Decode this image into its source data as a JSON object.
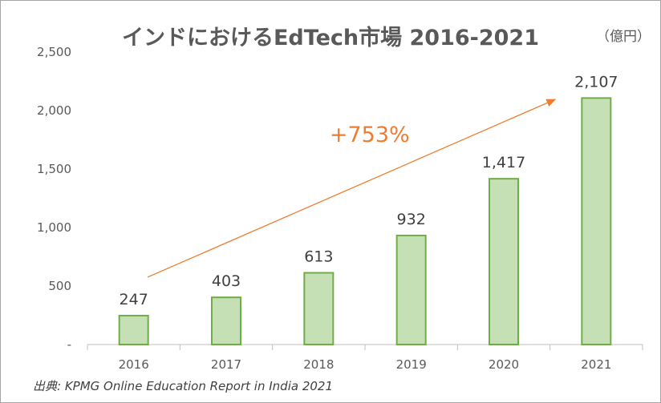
{
  "unit_label": "（億円）",
  "source": "出典: KPMG Online Education Report in India 2021",
  "chart_data": {
    "type": "bar",
    "title": "インドにおけるEdTech市場 2016-2021",
    "categories": [
      "2016",
      "2017",
      "2018",
      "2019",
      "2020",
      "2021"
    ],
    "values": [
      247,
      403,
      613,
      932,
      1417,
      2107
    ],
    "data_labels": [
      "247",
      "403",
      "613",
      "932",
      "1,417",
      "2,107"
    ],
    "ylim": [
      0,
      2500
    ],
    "yticks": [
      "-",
      "500",
      "1,000",
      "1,500",
      "2,000",
      "2,500"
    ],
    "grid": false,
    "annotation": "+753%",
    "colors": {
      "bar_fill": "#c5e0b4",
      "bar_stroke": "#70ad47",
      "arrow": "#ed7d31",
      "text": "#404040",
      "axis": "#bfbfbf"
    }
  }
}
